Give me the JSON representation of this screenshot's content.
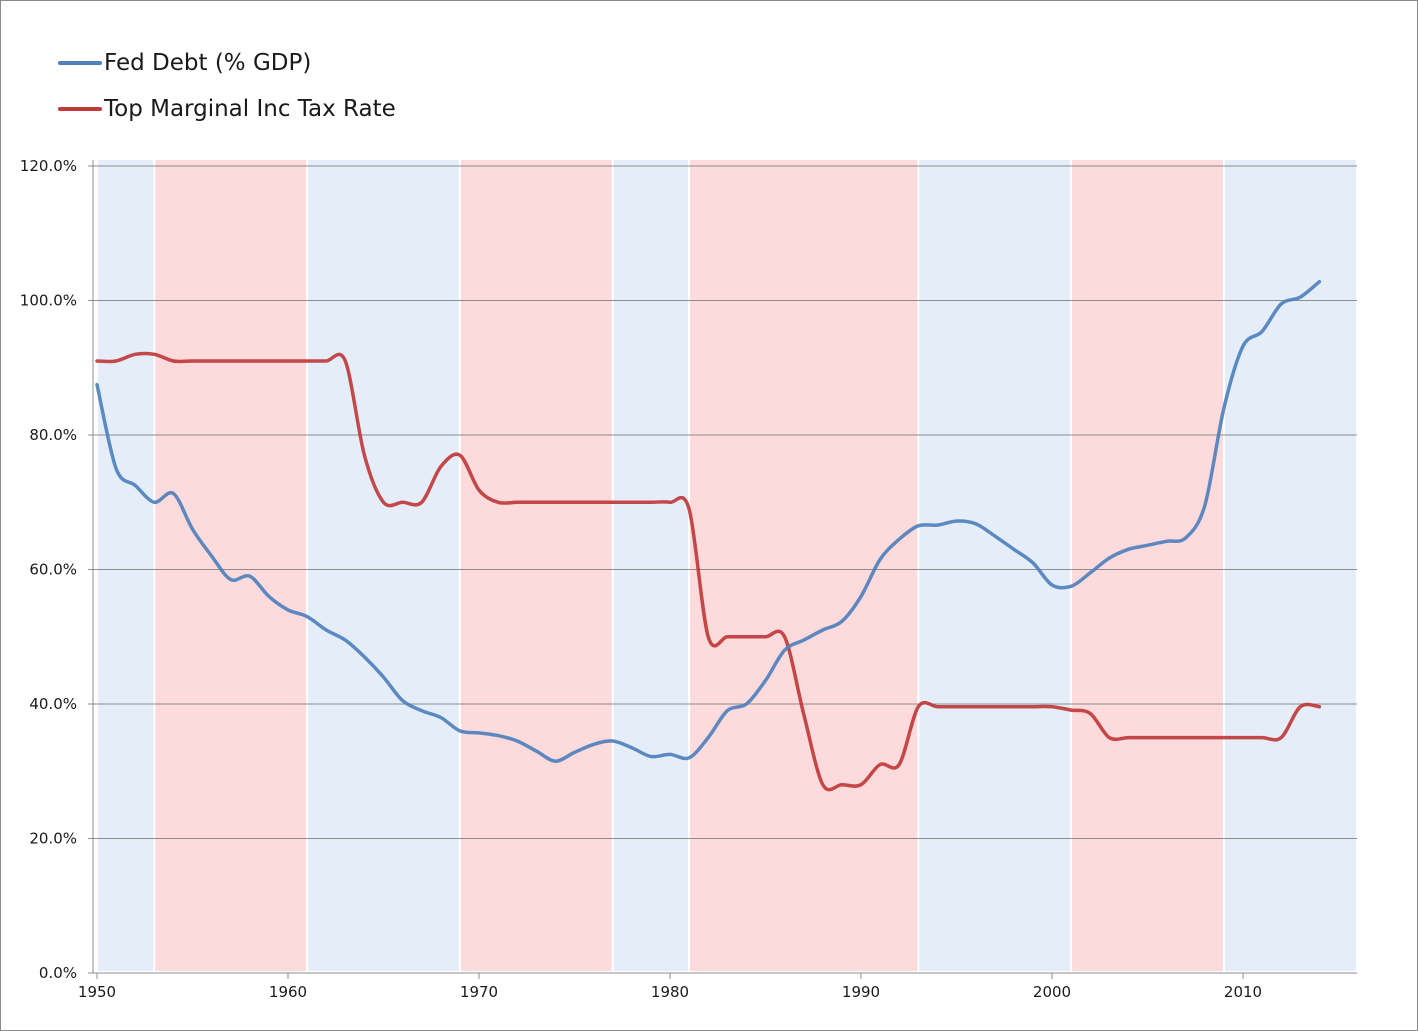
{
  "chart_data": {
    "type": "line",
    "title": "",
    "xlabel": "",
    "ylabel": "",
    "xlim": [
      1950,
      2016
    ],
    "ylim": [
      0,
      120
    ],
    "y_ticks": [
      "0.0%",
      "20.0%",
      "40.0%",
      "60.0%",
      "80.0%",
      "100.0%",
      "120.0%"
    ],
    "y_tick_values": [
      0,
      20,
      40,
      60,
      80,
      100,
      120
    ],
    "x_ticks": [
      "1950",
      "1960",
      "1970",
      "1980",
      "1990",
      "2000",
      "2010"
    ],
    "x_tick_values": [
      1950,
      1960,
      1970,
      1980,
      1990,
      2000,
      2010
    ],
    "grid": "horizontal",
    "legend_position": "top-left",
    "background_bands": [
      {
        "party": "blue",
        "start": 1950,
        "end": 1953,
        "color": "#e5eef8"
      },
      {
        "party": "red",
        "start": 1953,
        "end": 1961,
        "color": "#fddadb"
      },
      {
        "party": "blue",
        "start": 1961,
        "end": 1969,
        "color": "#e5eef8"
      },
      {
        "party": "red",
        "start": 1969,
        "end": 1977,
        "color": "#fddadb"
      },
      {
        "party": "blue",
        "start": 1977,
        "end": 1981,
        "color": "#e5eef8"
      },
      {
        "party": "red",
        "start": 1981,
        "end": 1993,
        "color": "#fddadb"
      },
      {
        "party": "blue",
        "start": 1993,
        "end": 2001,
        "color": "#e5eef8"
      },
      {
        "party": "red",
        "start": 2001,
        "end": 2009,
        "color": "#fddadb"
      },
      {
        "party": "blue",
        "start": 2009,
        "end": 2016,
        "color": "#e5eef8"
      }
    ],
    "series": [
      {
        "name": "Fed Debt (% GDP)",
        "color": "#4f81bd",
        "points": [
          [
            1950,
            87.5
          ],
          [
            1951,
            75
          ],
          [
            1952,
            72.5
          ],
          [
            1953,
            70
          ],
          [
            1954,
            71.3
          ],
          [
            1955,
            66
          ],
          [
            1956,
            62
          ],
          [
            1957,
            58.5
          ],
          [
            1958,
            59
          ],
          [
            1959,
            56
          ],
          [
            1960,
            54
          ],
          [
            1961,
            53
          ],
          [
            1962,
            51
          ],
          [
            1963,
            49.5
          ],
          [
            1964,
            47
          ],
          [
            1965,
            44
          ],
          [
            1966,
            40.5
          ],
          [
            1967,
            39
          ],
          [
            1968,
            38
          ],
          [
            1969,
            36
          ],
          [
            1970,
            35.7
          ],
          [
            1971,
            35.3
          ],
          [
            1972,
            34.5
          ],
          [
            1973,
            33
          ],
          [
            1974,
            31.5
          ],
          [
            1975,
            32.8
          ],
          [
            1976,
            34
          ],
          [
            1977,
            34.5
          ],
          [
            1978,
            33.5
          ],
          [
            1979,
            32.2
          ],
          [
            1980,
            32.5
          ],
          [
            1981,
            32
          ],
          [
            1982,
            35
          ],
          [
            1983,
            39
          ],
          [
            1984,
            40
          ],
          [
            1985,
            43.5
          ],
          [
            1986,
            48
          ],
          [
            1987,
            49.5
          ],
          [
            1988,
            51
          ],
          [
            1989,
            52.3
          ],
          [
            1990,
            56
          ],
          [
            1991,
            61.5
          ],
          [
            1992,
            64.5
          ],
          [
            1993,
            66.5
          ],
          [
            1994,
            66.6
          ],
          [
            1995,
            67.2
          ],
          [
            1996,
            66.8
          ],
          [
            1997,
            65
          ],
          [
            1998,
            63
          ],
          [
            1999,
            61
          ],
          [
            2000,
            57.7
          ],
          [
            2001,
            57.5
          ],
          [
            2002,
            59.5
          ],
          [
            2003,
            61.7
          ],
          [
            2004,
            63
          ],
          [
            2005,
            63.6
          ],
          [
            2006,
            64.2
          ],
          [
            2007,
            64.7
          ],
          [
            2008,
            69.5
          ],
          [
            2009,
            84
          ],
          [
            2010,
            93.2
          ],
          [
            2011,
            95.4
          ],
          [
            2012,
            99.5
          ],
          [
            2013,
            100.5
          ],
          [
            2014,
            102.8
          ]
        ]
      },
      {
        "name": "Top Marginal Inc Tax Rate",
        "color": "#c0393b",
        "points": [
          [
            1950,
            91
          ],
          [
            1951,
            91
          ],
          [
            1952,
            92
          ],
          [
            1953,
            92
          ],
          [
            1954,
            91
          ],
          [
            1955,
            91
          ],
          [
            1956,
            91
          ],
          [
            1957,
            91
          ],
          [
            1958,
            91
          ],
          [
            1959,
            91
          ],
          [
            1960,
            91
          ],
          [
            1961,
            91
          ],
          [
            1962,
            91
          ],
          [
            1963,
            91
          ],
          [
            1964,
            77
          ],
          [
            1965,
            70
          ],
          [
            1966,
            70
          ],
          [
            1967,
            70
          ],
          [
            1968,
            75.3
          ],
          [
            1969,
            77
          ],
          [
            1970,
            71.8
          ],
          [
            1971,
            70
          ],
          [
            1972,
            70
          ],
          [
            1973,
            70
          ],
          [
            1974,
            70
          ],
          [
            1975,
            70
          ],
          [
            1976,
            70
          ],
          [
            1977,
            70
          ],
          [
            1978,
            70
          ],
          [
            1979,
            70
          ],
          [
            1980,
            70
          ],
          [
            1981,
            69
          ],
          [
            1982,
            50
          ],
          [
            1983,
            50
          ],
          [
            1984,
            50
          ],
          [
            1985,
            50
          ],
          [
            1986,
            50
          ],
          [
            1987,
            38.5
          ],
          [
            1988,
            28
          ],
          [
            1989,
            28
          ],
          [
            1990,
            28
          ],
          [
            1991,
            31
          ],
          [
            1992,
            31
          ],
          [
            1993,
            39.6
          ],
          [
            1994,
            39.6
          ],
          [
            1995,
            39.6
          ],
          [
            1996,
            39.6
          ],
          [
            1997,
            39.6
          ],
          [
            1998,
            39.6
          ],
          [
            1999,
            39.6
          ],
          [
            2000,
            39.6
          ],
          [
            2001,
            39.1
          ],
          [
            2002,
            38.6
          ],
          [
            2003,
            35
          ],
          [
            2004,
            35
          ],
          [
            2005,
            35
          ],
          [
            2006,
            35
          ],
          [
            2007,
            35
          ],
          [
            2008,
            35
          ],
          [
            2009,
            35
          ],
          [
            2010,
            35
          ],
          [
            2011,
            35
          ],
          [
            2012,
            35
          ],
          [
            2013,
            39.6
          ],
          [
            2014,
            39.6
          ]
        ]
      }
    ]
  }
}
